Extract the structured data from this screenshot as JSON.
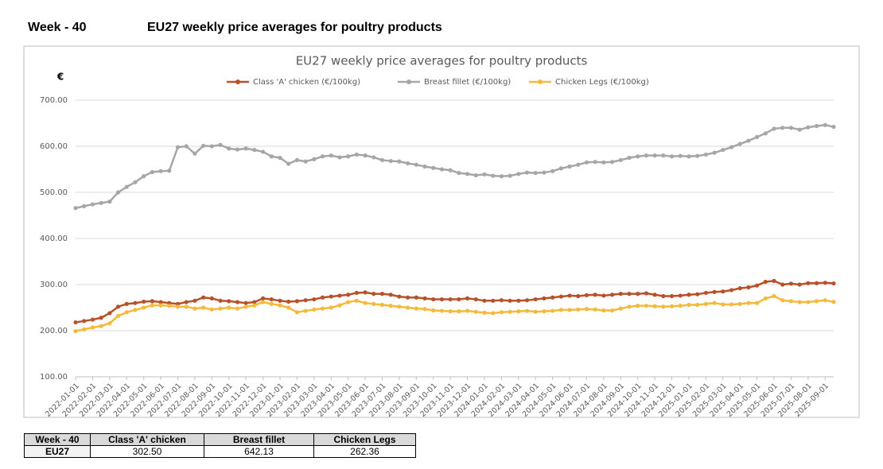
{
  "header": {
    "week": "Week - 40",
    "title": "EU27 weekly price averages for poultry products"
  },
  "chart_data": {
    "type": "line",
    "title": "EU27 weekly price averages for poultry products",
    "y_label": "€",
    "categories": [
      "2022-01-01",
      null,
      "2022-02-01",
      null,
      "2022-03-01",
      null,
      "2022-04-01",
      null,
      "2022-05-01",
      null,
      "2022-06-01",
      null,
      "2022-07-01",
      null,
      "2022-08-01",
      null,
      "2022-09-01",
      null,
      "2022-10-01",
      null,
      "2022-11-01",
      null,
      "2022-12-01",
      null,
      "2023-01-01",
      null,
      "2023-02-01",
      null,
      "2023-03-01",
      null,
      "2023-04-01",
      null,
      "2023-05-01",
      null,
      "2023-06-01",
      null,
      "2023-07-01",
      null,
      "2023-08-01",
      null,
      "2023-09-01",
      null,
      "2023-10-01",
      null,
      "2023-11-01",
      null,
      "2023-12-01",
      null,
      "2024-01-01",
      null,
      "2024-02-01",
      null,
      "2024-03-01",
      null,
      "2024-04-01",
      null,
      "2024-05-01",
      null,
      "2024-06-01",
      null,
      "2024-07-01",
      null,
      "2024-08-01",
      null,
      "2024-09-01",
      null,
      "2024-10-01",
      null,
      "2024-11-01",
      null,
      "2024-12-01",
      null,
      "2025-01-01",
      null,
      "2025-02-01",
      null,
      "2025-03-01",
      null,
      "2025-04-01",
      null,
      "2025-05-01",
      null,
      "2025-06-01",
      null,
      "2025-07-01",
      null,
      "2025-08-01",
      null,
      "2025-09-01",
      null
    ],
    "series": [
      {
        "name": "Class 'A' chicken (€/100kg)",
        "color": "#b8502a",
        "values": [
          218,
          221,
          224,
          228,
          238,
          252,
          258,
          260,
          263,
          264,
          262,
          260,
          258,
          262,
          265,
          272,
          270,
          265,
          264,
          262,
          260,
          262,
          270,
          268,
          265,
          263,
          264,
          266,
          268,
          272,
          274,
          276,
          278,
          282,
          283,
          280,
          280,
          278,
          274,
          272,
          272,
          270,
          268,
          268,
          268,
          268,
          270,
          268,
          265,
          265,
          266,
          265,
          265,
          266,
          268,
          270,
          272,
          274,
          276,
          275,
          277,
          278,
          276,
          278,
          280,
          280,
          280,
          281,
          278,
          275,
          275,
          276,
          278,
          279,
          282,
          284,
          285,
          288,
          292,
          294,
          298,
          306,
          308,
          300,
          302,
          300,
          303,
          303,
          304,
          302.5
        ]
      },
      {
        "name": "Breast fillet (€/100kg)",
        "color": "#a6a6a6",
        "values": [
          466,
          470,
          474,
          477,
          480,
          500,
          512,
          522,
          535,
          544,
          546,
          547,
          598,
          600,
          584,
          601,
          600,
          603,
          595,
          593,
          595,
          592,
          588,
          578,
          575,
          562,
          570,
          567,
          572,
          578,
          580,
          576,
          578,
          582,
          580,
          576,
          570,
          568,
          567,
          563,
          560,
          556,
          553,
          550,
          548,
          542,
          540,
          537,
          539,
          536,
          535,
          536,
          540,
          543,
          542,
          543,
          546,
          552,
          556,
          560,
          565,
          566,
          565,
          566,
          570,
          575,
          578,
          580,
          580,
          580,
          578,
          579,
          578,
          579,
          582,
          586,
          592,
          598,
          605,
          612,
          620,
          628,
          638,
          640,
          640,
          636,
          641,
          644,
          646,
          642.13
        ]
      },
      {
        "name": "Chicken Legs (€/100kg)",
        "color": "#f5b93c",
        "values": [
          199,
          203,
          207,
          210,
          216,
          232,
          240,
          245,
          250,
          255,
          255,
          254,
          252,
          252,
          248,
          250,
          246,
          248,
          250,
          248,
          252,
          255,
          262,
          258,
          255,
          250,
          240,
          243,
          246,
          248,
          250,
          255,
          262,
          265,
          260,
          258,
          256,
          254,
          252,
          250,
          248,
          247,
          244,
          243,
          242,
          242,
          243,
          241,
          239,
          238,
          240,
          241,
          242,
          243,
          241,
          242,
          243,
          245,
          245,
          246,
          247,
          246,
          244,
          244,
          248,
          252,
          254,
          254,
          253,
          252,
          253,
          254,
          256,
          256,
          258,
          260,
          257,
          257,
          258,
          260,
          260,
          270,
          275,
          266,
          264,
          262,
          262,
          264,
          266,
          262.36
        ]
      }
    ],
    "ylim": [
      100,
      700
    ],
    "yticks": [
      {
        "value": 100,
        "label": "100.00"
      },
      {
        "value": 200,
        "label": "200.00"
      },
      {
        "value": 300,
        "label": "300.00"
      },
      {
        "value": 400,
        "label": "400.00"
      },
      {
        "value": 500,
        "label": "500.00"
      },
      {
        "value": 600,
        "label": "600.00"
      },
      {
        "value": 700,
        "label": "700.00"
      }
    ],
    "grid": true,
    "legend": "top"
  },
  "table": {
    "columns": [
      "Week - 40",
      "Class 'A' chicken",
      "Breast fillet",
      "Chicken Legs"
    ],
    "rows": [
      [
        "EU27",
        "302.50",
        "642.13",
        "262.36"
      ]
    ]
  }
}
